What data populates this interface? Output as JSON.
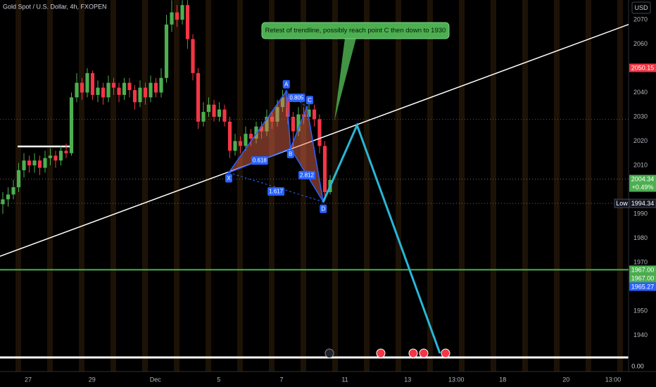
{
  "chart_data": {
    "type": "candlestick",
    "title": "Gold Spot / U.S. Dollar, 4h, FXOPEN",
    "currency": "USD",
    "open": [
      1994,
      1996,
      1998,
      2001,
      2008,
      2012,
      2010,
      2012,
      2009,
      2013,
      2014,
      2012,
      2016,
      2015,
      2038,
      2044,
      2040,
      2048,
      2039,
      2042,
      2038,
      2044,
      2042,
      2039,
      2044,
      2041,
      2036,
      2042,
      2038,
      2044,
      2040,
      2046,
      2068,
      2073,
      2070,
      2076,
      2062,
      2048,
      2028,
      2032,
      2035,
      2030,
      2033,
      2028,
      2016,
      2020,
      2018,
      2023,
      2021,
      2026,
      2024,
      2030,
      2028,
      2034,
      2038,
      2030,
      2024,
      2031,
      2030,
      2033,
      2029,
      2018,
      1999
    ],
    "high": [
      1999,
      2001,
      2004,
      2011,
      2015,
      2014,
      2015,
      2014,
      2016,
      2017,
      2016,
      2018,
      2019,
      2040,
      2048,
      2046,
      2050,
      2049,
      2045,
      2044,
      2047,
      2046,
      2044,
      2046,
      2046,
      2043,
      2045,
      2044,
      2047,
      2046,
      2050,
      2072,
      2078,
      2076,
      2078,
      2078,
      2064,
      2050,
      2036,
      2038,
      2037,
      2036,
      2035,
      2030,
      2023,
      2022,
      2026,
      2025,
      2028,
      2028,
      2033,
      2032,
      2037,
      2041,
      2040,
      2032,
      2034,
      2034,
      2036,
      2035,
      2031,
      2020,
      2006
    ],
    "low": [
      1990,
      1993,
      1996,
      1999,
      2005,
      2007,
      2007,
      2006,
      2007,
      2010,
      2009,
      2010,
      2013,
      2014,
      2036,
      2037,
      2038,
      2037,
      2036,
      2035,
      2036,
      2039,
      2036,
      2037,
      2038,
      2033,
      2034,
      2035,
      2036,
      2038,
      2038,
      2044,
      2065,
      2067,
      2068,
      2058,
      2045,
      2025,
      2026,
      2030,
      2028,
      2028,
      2026,
      2013,
      2014,
      2015,
      2016,
      2018,
      2019,
      2021,
      2022,
      2025,
      2026,
      2032,
      2027,
      2017,
      2022,
      2027,
      2028,
      2026,
      2015,
      1996,
      1998
    ],
    "close": [
      1996,
      1998,
      2001,
      2008,
      2012,
      2010,
      2012,
      2009,
      2013,
      2014,
      2012,
      2016,
      2015,
      2038,
      2044,
      2040,
      2048,
      2039,
      2042,
      2038,
      2044,
      2042,
      2039,
      2044,
      2041,
      2036,
      2042,
      2038,
      2044,
      2040,
      2046,
      2068,
      2073,
      2070,
      2076,
      2062,
      2048,
      2028,
      2032,
      2035,
      2030,
      2033,
      2028,
      2016,
      2020,
      2018,
      2023,
      2021,
      2026,
      2024,
      2030,
      2028,
      2034,
      2038,
      2030,
      2024,
      2031,
      2030,
      2033,
      2029,
      2018,
      1999,
      2004
    ],
    "up_color": "#4caf50",
    "down_color": "#f23645",
    "ylim": [
      1925.1,
      2078.1
    ],
    "yticks": [
      1940,
      1950,
      1970,
      1980,
      1990,
      2010,
      2020,
      2030,
      2040,
      2060,
      2070
    ],
    "xticks": [
      {
        "value": 4.8,
        "label": "27"
      },
      {
        "value": 16.9,
        "label": "29"
      },
      {
        "value": 28.9,
        "label": "Dec"
      },
      {
        "value": 40.9,
        "label": "5"
      },
      {
        "value": 52.8,
        "label": "7"
      },
      {
        "value": 64.8,
        "label": "11"
      },
      {
        "value": 76.7,
        "label": "13"
      },
      {
        "value": 85.9,
        "label": "13:00"
      },
      {
        "value": 94.7,
        "label": "18"
      },
      {
        "value": 106.7,
        "label": "20"
      },
      {
        "value": 115.6,
        "label": "13:00"
      }
    ],
    "annotation": "Retest of trendline, possibly reach point C then down to 1930",
    "trendline": [
      {
        "bar": 0,
        "price": 1973
      },
      {
        "bar": 118.5,
        "price": 2068
      }
    ],
    "projection": {
      "color": "#29b6d6",
      "points": [
        {
          "bar": 60.7,
          "price": 1995
        },
        {
          "bar": 67.1,
          "price": 2026.5
        },
        {
          "bar": 82.8,
          "price": 1932.6
        }
      ]
    },
    "pattern": {
      "points": [
        {
          "label": "X",
          "bar": 42.8,
          "price": 2007
        },
        {
          "label": "A",
          "bar": 53.7,
          "price": 2040.5
        },
        {
          "label": "B",
          "bar": 54.5,
          "price": 2017
        },
        {
          "label": "C",
          "bar": 57.6,
          "price": 2034
        },
        {
          "label": "D",
          "bar": 60.7,
          "price": 1995
        }
      ],
      "ratios": [
        0.618,
        0.805,
        2.812,
        1.617
      ]
    },
    "levels": [
      {
        "price": 2029,
        "color": "#555555",
        "style": "dotted"
      },
      {
        "price": 2004.34,
        "color": "#666666",
        "style": "dotted"
      },
      {
        "price": 1994.34,
        "color": "#666666",
        "style": "dotted"
      },
      {
        "price": 1967,
        "color": "#4caf50",
        "style": "solid"
      }
    ],
    "segment": {
      "price": 2017.8,
      "from": 2.8,
      "to": 12.8,
      "color": "#ffffff"
    },
    "price_labels": [
      {
        "value": 2050.15,
        "color": "#f23645"
      },
      {
        "value": 2004.34,
        "color": "#4caf50",
        "sub": "+0.49%"
      },
      {
        "value": 1994.34,
        "color": "#131722",
        "tag": "Low"
      },
      {
        "value": 1967,
        "label": "1967.00",
        "color": "#4caf50"
      },
      {
        "value": 1967,
        "label": "1967.00",
        "color": "#4caf50"
      },
      {
        "value": 1965.27,
        "color": "#2962ff"
      }
    ],
    "zero_label": "0.00"
  }
}
